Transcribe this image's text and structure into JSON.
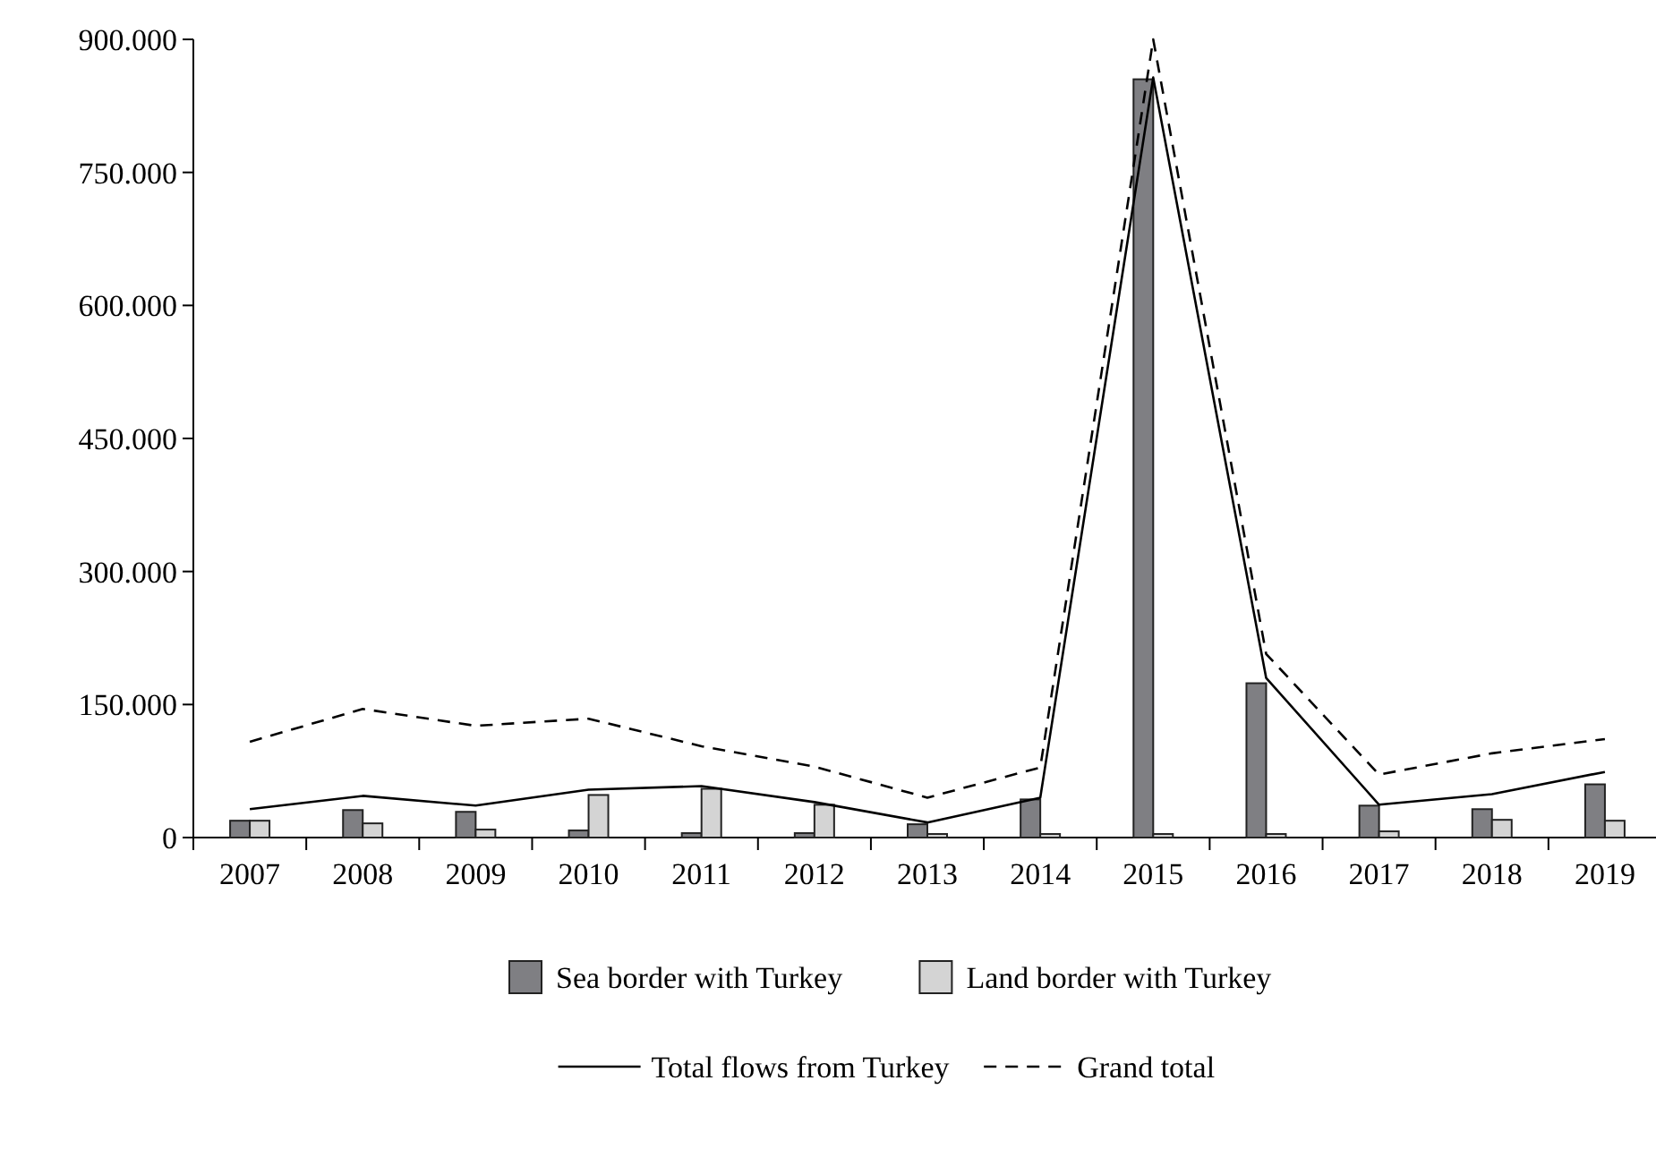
{
  "chart_data": {
    "type": "bar",
    "categories": [
      "2007",
      "2008",
      "2009",
      "2010",
      "2011",
      "2012",
      "2013",
      "2014",
      "2015",
      "2016",
      "2017",
      "2018",
      "2019"
    ],
    "series": [
      {
        "name": "Sea border with Turkey",
        "color": "#7f7f83",
        "values": [
          19000,
          31000,
          29000,
          8000,
          5000,
          5000,
          15000,
          43000,
          855000,
          174000,
          36000,
          32000,
          60000
        ]
      },
      {
        "name": "Land border with Turkey",
        "color": "#d4d4d4",
        "values": [
          19000,
          16000,
          9000,
          48000,
          55000,
          37000,
          4000,
          4000,
          4000,
          4000,
          7000,
          20000,
          19000
        ]
      },
      {
        "name": "Total flows from Turkey",
        "type": "line",
        "color": "#000000",
        "line_style": "solid",
        "values": [
          32000,
          47000,
          36000,
          54000,
          58000,
          40000,
          17000,
          45000,
          857000,
          180000,
          37000,
          49000,
          74000
        ]
      },
      {
        "name": "Grand total",
        "type": "line",
        "color": "#000000",
        "line_style": "dashed",
        "values": [
          108000,
          145000,
          126000,
          134000,
          103000,
          80000,
          45000,
          79000,
          900000,
          207000,
          71000,
          95000,
          111000
        ]
      }
    ],
    "ylim": [
      0,
      900000
    ],
    "yticks": [
      {
        "value": 0,
        "label": "0"
      },
      {
        "value": 150000,
        "label": "150.000"
      },
      {
        "value": 300000,
        "label": "300.000"
      },
      {
        "value": 450000,
        "label": "450.000"
      },
      {
        "value": 600000,
        "label": "600.000"
      },
      {
        "value": 750000,
        "label": "750.000"
      },
      {
        "value": 900000,
        "label": "900.000"
      }
    ],
    "grid": false,
    "legend": "bottom",
    "marker": "none"
  }
}
